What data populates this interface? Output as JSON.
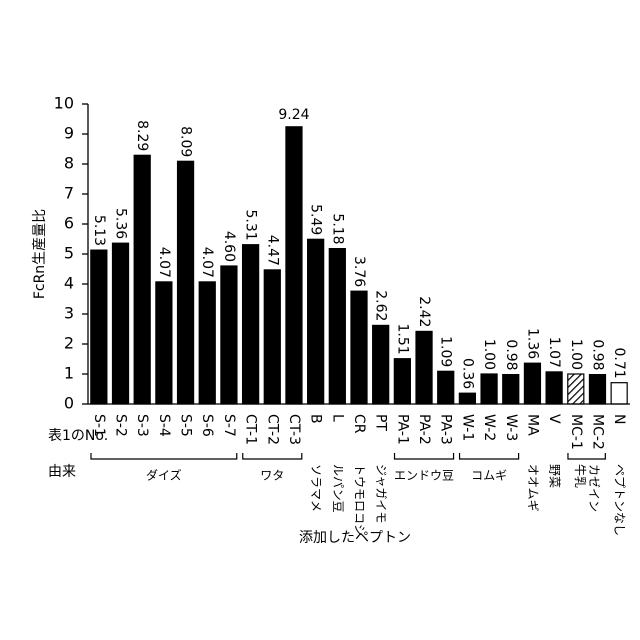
{
  "chart_data": {
    "type": "bar",
    "y_label": "FcRn生産量比",
    "x_label": "添加したペプトン",
    "row_labels": [
      "表1のNo.",
      "由来"
    ],
    "categories": [
      "S-1",
      "S-2",
      "S-3",
      "S-4",
      "S-5",
      "S-6",
      "S-7",
      "CT-1",
      "CT-2",
      "CT-3",
      "B",
      "L",
      "CR",
      "PT",
      "PA-1",
      "PA-2",
      "PA-3",
      "W-1",
      "W-2",
      "W-3",
      "MA",
      "V",
      "MC-1",
      "MC-2",
      "N"
    ],
    "values": [
      5.13,
      5.36,
      8.29,
      4.07,
      8.09,
      4.07,
      4.6,
      5.31,
      4.47,
      9.24,
      5.49,
      5.18,
      3.76,
      2.62,
      1.51,
      2.42,
      1.09,
      0.36,
      1,
      0.98,
      1.36,
      1.07,
      1,
      0.98,
      0.71
    ],
    "value_labels": [
      "5.13",
      "5.36",
      "8.29",
      "4.07",
      "8.09",
      "4.07",
      "4.60",
      "5.31",
      "4.47",
      "9.24",
      "5.49",
      "5.18",
      "3.76",
      "2.62",
      "1.51",
      "2.42",
      "1.09",
      "0.36",
      "1.00",
      "0.98",
      "1.36",
      "1.07",
      "1.00",
      "0.98",
      "0.71"
    ],
    "color": "#000000",
    "bar_styles": [
      "solid",
      "solid",
      "solid",
      "solid",
      "solid",
      "solid",
      "solid",
      "solid",
      "solid",
      "solid",
      "solid",
      "solid",
      "solid",
      "solid",
      "solid",
      "solid",
      "solid",
      "solid",
      "solid",
      "solid",
      "solid",
      "solid",
      "hatched",
      "solid",
      "open"
    ],
    "origins": [
      {
        "label": [
          "ダイズ"
        ],
        "span": 7,
        "vertical": false
      },
      {
        "label": [
          "ワタ"
        ],
        "span": 3,
        "vertical": false
      },
      {
        "label": [
          "ソラマメ"
        ],
        "span": 1,
        "vertical": true
      },
      {
        "label": [
          "ルパン豆"
        ],
        "span": 1,
        "vertical": true
      },
      {
        "label": [
          "トウモロコシ"
        ],
        "span": 1,
        "vertical": true
      },
      {
        "label": [
          "ジャガイモ"
        ],
        "span": 1,
        "vertical": true
      },
      {
        "label": [
          "エンドウ豆"
        ],
        "span": 3,
        "vertical": false
      },
      {
        "label": [
          "コムギ"
        ],
        "span": 3,
        "vertical": false
      },
      {
        "label": [
          "オオムギ"
        ],
        "span": 1,
        "vertical": true
      },
      {
        "label": [
          "野菜"
        ],
        "span": 1,
        "vertical": true
      },
      {
        "label": [
          "牛乳",
          "カゼイン"
        ],
        "span": 2,
        "vertical": true
      },
      {
        "label": [
          "ペプトンなし"
        ],
        "span": 1,
        "vertical": true
      }
    ],
    "ylim": [
      0,
      10
    ],
    "yticks": [
      0,
      1,
      2,
      3,
      4,
      5,
      6,
      7,
      8,
      9,
      10
    ]
  }
}
